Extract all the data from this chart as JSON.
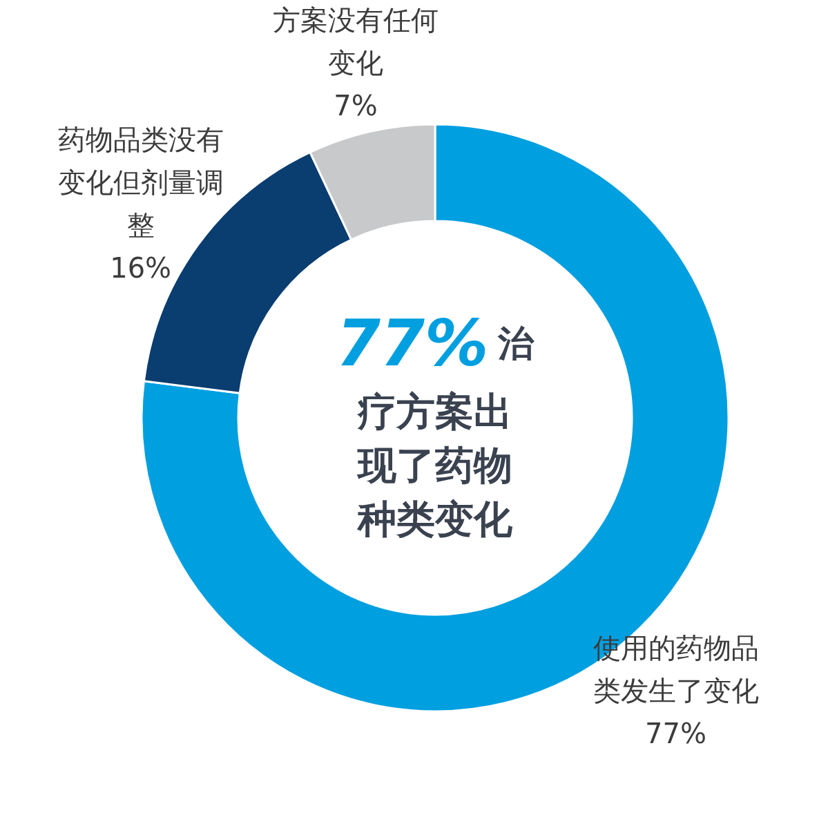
{
  "chart_data": {
    "type": "donut",
    "categories": [
      "使用的药物品类发生了变化",
      "药物品类没有变化但剂量调整",
      "方案没有任何变化"
    ],
    "values": [
      77,
      16,
      7
    ],
    "colors": [
      "#009fe0",
      "#0a3d70",
      "#c8c9cb"
    ],
    "value_labels": [
      "77%",
      "16%",
      "7%"
    ],
    "annotations": [
      "77%",
      "治疗方案出现了药物种类变化"
    ]
  }
}
